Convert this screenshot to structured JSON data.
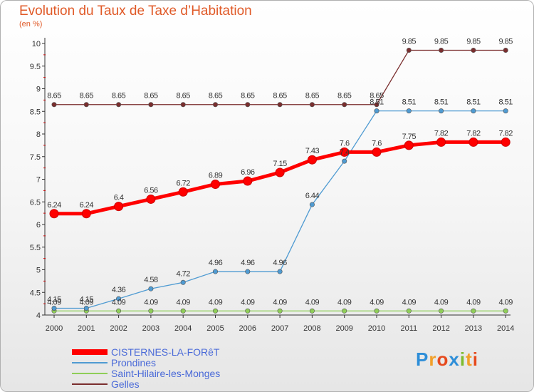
{
  "header": {
    "title": "Evolution du Taux de Taxe d’Habitation",
    "subtitle": "(en %)"
  },
  "logo": {
    "text": "Proxiti"
  },
  "chart_data": {
    "type": "line",
    "title": "Evolution du Taux de Taxe d’Habitation",
    "ylabel": "(en %)",
    "xlabel": "",
    "x": [
      "2000",
      "2001",
      "2002",
      "2003",
      "2004",
      "2005",
      "2006",
      "2007",
      "2008",
      "2009",
      "2010",
      "2011",
      "2012",
      "2013",
      "2014"
    ],
    "yticks": [
      "4",
      "4.5",
      "5",
      "5.5",
      "6",
      "6.5",
      "7",
      "7.5",
      "8",
      "8.5",
      "9",
      "9.5",
      "10"
    ],
    "ylim": [
      4,
      10
    ],
    "grid": false,
    "legend_position": "bottom-left",
    "series": [
      {
        "name": "CISTERNES-LA-FORêT",
        "color": "#ff0000",
        "emphasis": true,
        "values": [
          6.24,
          6.24,
          6.4,
          6.56,
          6.72,
          6.89,
          6.96,
          7.15,
          7.43,
          7.6,
          7.6,
          7.75,
          7.82,
          7.82,
          7.82
        ],
        "labels": [
          "6.24",
          "6.24",
          "6.4",
          "6.56",
          "6.72",
          "6.89",
          "6.96",
          "7.15",
          "7.43",
          "7.6",
          "7.6",
          "7.75",
          "7.82",
          "7.82",
          "7.82"
        ]
      },
      {
        "name": "Prondines",
        "color": "#4f9bd2",
        "values": [
          4.15,
          4.15,
          4.36,
          4.58,
          4.72,
          4.96,
          4.96,
          4.96,
          6.44,
          7.4,
          8.51,
          8.51,
          8.51,
          8.51,
          8.51
        ],
        "labels": [
          "4.15",
          "4.15",
          "4.36",
          "4.58",
          "4.72",
          "4.96",
          "4.96",
          "4.96",
          "6.44",
          "7.4",
          "8.51",
          "8.51",
          "8.51",
          "8.51",
          "8.51"
        ]
      },
      {
        "name": "Saint-Hilaire-les-Monges",
        "color": "#8fce58",
        "values": [
          4.09,
          4.09,
          4.09,
          4.09,
          4.09,
          4.09,
          4.09,
          4.09,
          4.09,
          4.09,
          4.09,
          4.09,
          4.09,
          4.09,
          4.09
        ],
        "labels": [
          "4.09",
          "4.09",
          "4.09",
          "4.09",
          "4.09",
          "4.09",
          "4.09",
          "4.09",
          "4.09",
          "4.09",
          "4.09",
          "4.09",
          "4.09",
          "4.09",
          "4.09"
        ]
      },
      {
        "name": "Gelles",
        "color": "#7a2e2e",
        "values": [
          8.65,
          8.65,
          8.65,
          8.65,
          8.65,
          8.65,
          8.65,
          8.65,
          8.65,
          8.65,
          8.65,
          9.85,
          9.85,
          9.85,
          9.85
        ],
        "labels": [
          "8.65",
          "8.65",
          "8.65",
          "8.65",
          "8.65",
          "8.65",
          "8.65",
          "8.65",
          "8.65",
          "8.65",
          "8.65",
          "9.85",
          "9.85",
          "9.85",
          "9.85"
        ]
      }
    ]
  }
}
